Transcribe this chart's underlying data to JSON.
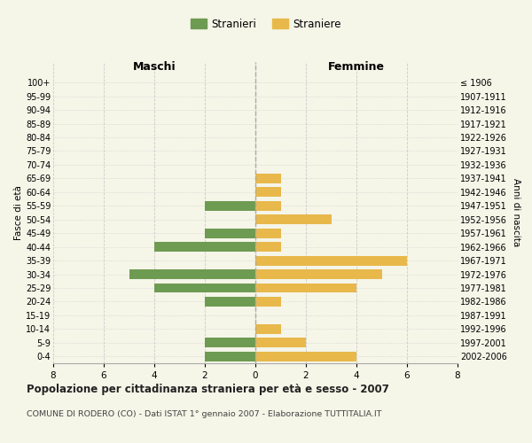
{
  "age_groups": [
    "0-4",
    "5-9",
    "10-14",
    "15-19",
    "20-24",
    "25-29",
    "30-34",
    "35-39",
    "40-44",
    "45-49",
    "50-54",
    "55-59",
    "60-64",
    "65-69",
    "70-74",
    "75-79",
    "80-84",
    "85-89",
    "90-94",
    "95-99",
    "100+"
  ],
  "birth_years": [
    "2002-2006",
    "1997-2001",
    "1992-1996",
    "1987-1991",
    "1982-1986",
    "1977-1981",
    "1972-1976",
    "1967-1971",
    "1962-1966",
    "1957-1961",
    "1952-1956",
    "1947-1951",
    "1942-1946",
    "1937-1941",
    "1932-1936",
    "1927-1931",
    "1922-1926",
    "1917-1921",
    "1912-1916",
    "1907-1911",
    "≤ 1906"
  ],
  "maschi": [
    2,
    2,
    0,
    0,
    2,
    4,
    5,
    0,
    4,
    2,
    0,
    2,
    0,
    0,
    0,
    0,
    0,
    0,
    0,
    0,
    0
  ],
  "femmine": [
    4,
    2,
    1,
    0,
    1,
    4,
    5,
    6,
    1,
    1,
    3,
    1,
    1,
    1,
    0,
    0,
    0,
    0,
    0,
    0,
    0
  ],
  "color_maschi": "#6e9b52",
  "color_femmine": "#e8b84b",
  "xlim": 8,
  "xlabel_left": "Maschi",
  "xlabel_right": "Femmine",
  "ylabel_left": "Fasce di età",
  "ylabel_right": "Anni di nascita",
  "title": "Popolazione per cittadinanza straniera per età e sesso - 2007",
  "subtitle": "COMUNE DI RODERO (CO) - Dati ISTAT 1° gennaio 2007 - Elaborazione TUTTITALIA.IT",
  "legend_stranieri": "Stranieri",
  "legend_straniere": "Straniere",
  "background_color": "#f5f5e8",
  "grid_color": "#cccccc"
}
